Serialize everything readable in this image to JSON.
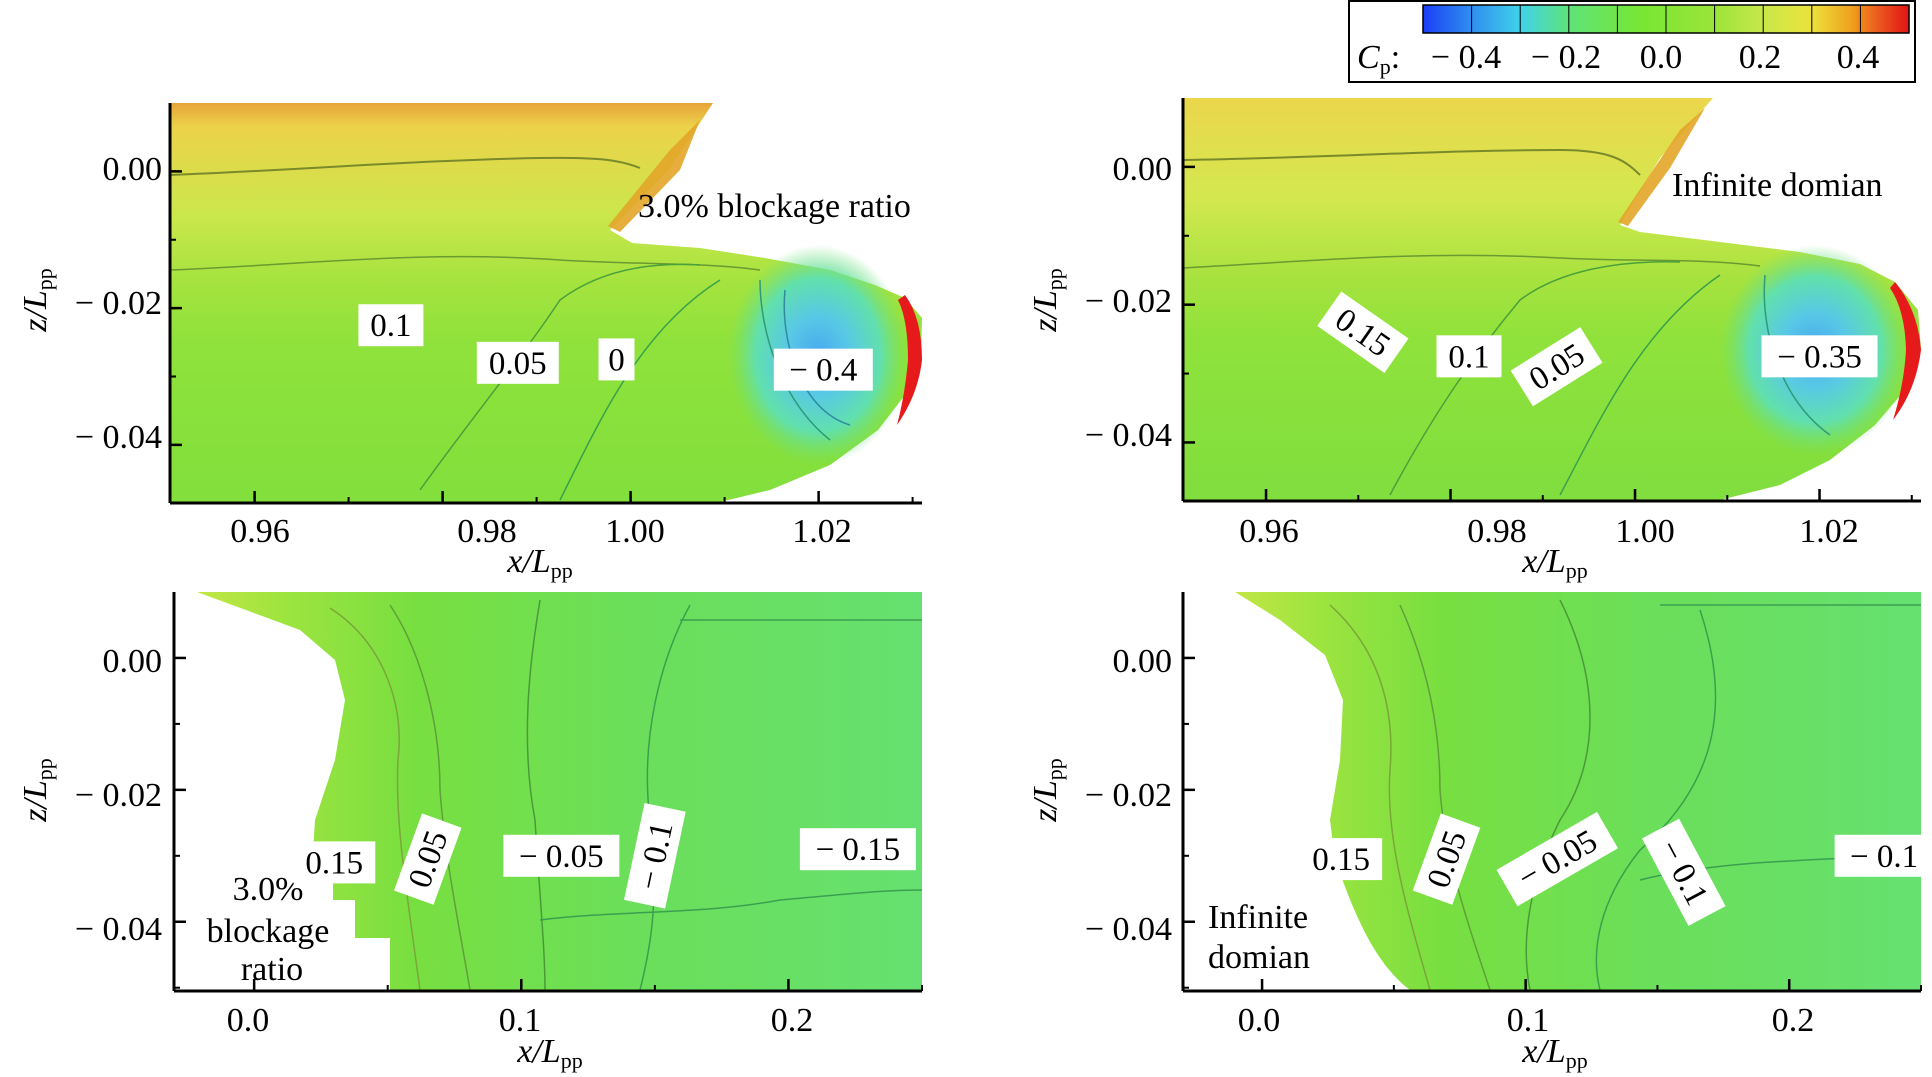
{
  "colorbar": {
    "label": "C",
    "label_sub": "p",
    "ticks": [
      "− 0.4",
      "− 0.2",
      "0.0",
      "0.2",
      "0.4"
    ],
    "tick_values": [
      -0.4,
      -0.2,
      0.0,
      0.2,
      0.4
    ],
    "range": [
      -0.5,
      0.5
    ],
    "colors": [
      "#1a3ff5",
      "#2f8ef0",
      "#40d2ea",
      "#5ee37a",
      "#78e633",
      "#9be43a",
      "#c8e84a",
      "#ece23c",
      "#f0a21e",
      "#e94a1e",
      "#e11414"
    ]
  },
  "chart_data": [
    {
      "type": "heatmap",
      "panel": "top-left",
      "annotation": "3.0% blockage ratio",
      "xlabel": "x/L",
      "xlabel_sub": "pp",
      "ylabel": "z/L",
      "ylabel_sub": "pp",
      "xlim": [
        0.951,
        1.031
      ],
      "ylim": [
        -0.0485,
        0.01
      ],
      "xticks": [
        "0.96",
        "0.98",
        "1.00",
        "1.02"
      ],
      "xtick_values": [
        0.96,
        0.98,
        1.0,
        1.02
      ],
      "yticks": [
        "0.00",
        "− 0.02",
        "− 0.04"
      ],
      "ytick_values": [
        0.0,
        -0.02,
        -0.04
      ],
      "contour_labels": [
        {
          "text": "0.1",
          "x": 0.9745,
          "z": -0.0225
        },
        {
          "text": "0.05",
          "x": 0.988,
          "z": -0.028
        },
        {
          "text": "0",
          "x": 0.9985,
          "z": -0.0275
        },
        {
          "text": "− 0.4",
          "x": 1.0205,
          "z": -0.029
        }
      ]
    },
    {
      "type": "heatmap",
      "panel": "top-right",
      "annotation": "Infinite domian",
      "xlabel": "x/L",
      "xlabel_sub": "pp",
      "ylabel": "z/L",
      "ylabel_sub": "pp",
      "xlim": [
        0.951,
        1.031
      ],
      "ylim": [
        -0.0485,
        0.01
      ],
      "xticks": [
        "0.96",
        "0.98",
        "1.00",
        "1.02"
      ],
      "xtick_values": [
        0.96,
        0.98,
        1.0,
        1.02
      ],
      "yticks": [
        "0.00",
        "− 0.02",
        "− 0.04"
      ],
      "ytick_values": [
        0.0,
        -0.02,
        -0.04
      ],
      "contour_labels": [
        {
          "text": "0.15",
          "x": 0.9705,
          "z": -0.024,
          "angle": 35
        },
        {
          "text": "0.1",
          "x": 0.982,
          "z": -0.0275
        },
        {
          "text": "0.05",
          "x": 0.9915,
          "z": -0.029,
          "angle": -32
        },
        {
          "text": "− 0.35",
          "x": 1.02,
          "z": -0.0275
        }
      ]
    },
    {
      "type": "heatmap",
      "panel": "bottom-left",
      "annotation": "3.0% blockage ratio",
      "xlabel": "x/L",
      "xlabel_sub": "pp",
      "ylabel": "z/L",
      "ylabel_sub": "pp",
      "xlim": [
        -0.03,
        0.25
      ],
      "ylim": [
        -0.0505,
        0.01
      ],
      "xticks": [
        "0.0",
        "0.1",
        "0.2"
      ],
      "xtick_values": [
        0.0,
        0.1,
        0.2
      ],
      "yticks": [
        "0.00",
        "− 0.02",
        "− 0.04"
      ],
      "ytick_values": [
        0.0,
        -0.02,
        -0.04
      ],
      "contour_labels": [
        {
          "text": "0.15",
          "x": 0.03,
          "z": -0.031
        },
        {
          "text": "0.05",
          "x": 0.065,
          "z": -0.0305,
          "angle": -70
        },
        {
          "text": "− 0.05",
          "x": 0.115,
          "z": -0.03
        },
        {
          "text": "− 0.1",
          "x": 0.15,
          "z": -0.03,
          "angle": -78
        },
        {
          "text": "− 0.15",
          "x": 0.226,
          "z": -0.029
        }
      ]
    },
    {
      "type": "heatmap",
      "panel": "bottom-right",
      "annotation": "Infinite domian",
      "xlabel": "x/L",
      "xlabel_sub": "pp",
      "ylabel": "z/L",
      "ylabel_sub": "pp",
      "xlim": [
        -0.03,
        0.25
      ],
      "ylim": [
        -0.0505,
        0.01
      ],
      "xticks": [
        "0.0",
        "0.1",
        "0.2"
      ],
      "xtick_values": [
        0.0,
        0.1,
        0.2
      ],
      "yticks": [
        "0.00",
        "− 0.02",
        "− 0.04"
      ],
      "ytick_values": [
        0.0,
        -0.02,
        -0.04
      ],
      "contour_labels": [
        {
          "text": "0.15",
          "x": 0.03,
          "z": -0.0305
        },
        {
          "text": "0.05",
          "x": 0.07,
          "z": -0.0305,
          "angle": -70
        },
        {
          "text": "− 0.05",
          "x": 0.112,
          "z": -0.0305,
          "angle": -30
        },
        {
          "text": "− 0.1",
          "x": 0.16,
          "z": -0.0325,
          "angle": 62
        },
        {
          "text": "− 0.1",
          "x": 0.236,
          "z": -0.03
        }
      ]
    }
  ]
}
